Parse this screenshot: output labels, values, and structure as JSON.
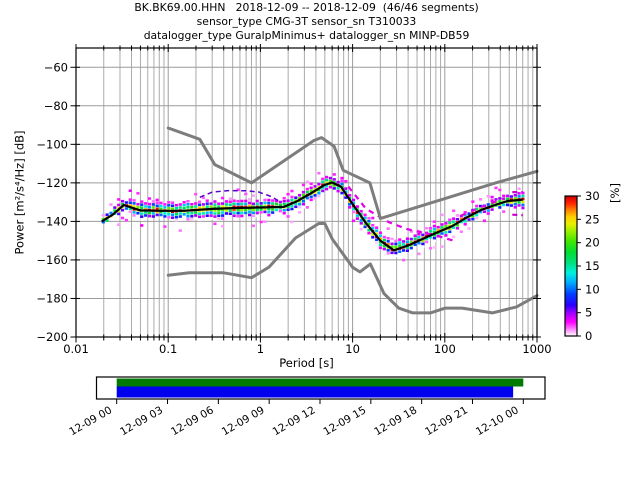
{
  "chart_data": {
    "type": "heatmap",
    "title": "BK.BK69.00.HHN   2018-12-09 -- 2018-12-09  (46/46 segments)",
    "subtitle_sensor": "sensor_type CMG-3T sensor_sn T310033",
    "subtitle_datalogger": "datalogger_type GuralpMinimus+ datalogger_sn MINP-DB59",
    "xlabel": "Period [s]",
    "ylabel": "Power [m²/s⁴/Hz] [dB]",
    "xscale": "log",
    "xlim": [
      0.01,
      1000
    ],
    "ylim": [
      -200,
      -50
    ],
    "grid": true,
    "x_ticks": [
      {
        "v": 0.01,
        "label": "0.01"
      },
      {
        "v": 0.1,
        "label": "0.1"
      },
      {
        "v": 1,
        "label": "1"
      },
      {
        "v": 10,
        "label": "10"
      },
      {
        "v": 100,
        "label": "100"
      },
      {
        "v": 1000,
        "label": "1000"
      }
    ],
    "y_ticks": [
      {
        "v": -60,
        "label": "−60"
      },
      {
        "v": -80,
        "label": "−80"
      },
      {
        "v": -100,
        "label": "−100"
      },
      {
        "v": -120,
        "label": "−120"
      },
      {
        "v": -140,
        "label": "−140"
      },
      {
        "v": -160,
        "label": "−160"
      },
      {
        "v": -180,
        "label": "−180"
      },
      {
        "v": -200,
        "label": "−200"
      }
    ],
    "colorbar": {
      "label": "[%]",
      "ticks": [
        0,
        5,
        10,
        15,
        20,
        25,
        30
      ],
      "range": [
        0,
        30
      ],
      "stops": [
        [
          0,
          "#ffffff"
        ],
        [
          0.9,
          "#ffb0ff"
        ],
        [
          3,
          "#ff00ff"
        ],
        [
          5,
          "#9900ff"
        ],
        [
          6.6,
          "#2a00ff"
        ],
        [
          9,
          "#0040ff"
        ],
        [
          11.4,
          "#00aaff"
        ],
        [
          13.5,
          "#00f0e0"
        ],
        [
          15.6,
          "#00e080"
        ],
        [
          18,
          "#00dd30"
        ],
        [
          20.4,
          "#44e800"
        ],
        [
          22.5,
          "#a0f000"
        ],
        [
          24,
          "#e8f000"
        ],
        [
          25.5,
          "#ffd000"
        ],
        [
          27,
          "#ff8000"
        ],
        [
          28.5,
          "#ff2000"
        ],
        [
          30,
          "#cc0000"
        ]
      ]
    },
    "noise_models": {
      "color": "#7d7d7d",
      "nhnm": [
        [
          0.1,
          -91.5
        ],
        [
          0.22,
          -97.4
        ],
        [
          0.32,
          -110.5
        ],
        [
          0.8,
          -120.0
        ],
        [
          3.8,
          -98.0
        ],
        [
          4.6,
          -96.5
        ],
        [
          6.3,
          -101.0
        ],
        [
          7.9,
          -113.5
        ],
        [
          15.4,
          -120.0
        ],
        [
          20.0,
          -138.5
        ],
        [
          354.8,
          -120.0
        ],
        [
          1000,
          -114.0
        ]
      ],
      "nlnm": [
        [
          0.1,
          -168.0
        ],
        [
          0.17,
          -166.7
        ],
        [
          0.4,
          -166.7
        ],
        [
          0.8,
          -169.2
        ],
        [
          1.24,
          -163.7
        ],
        [
          2.4,
          -148.6
        ],
        [
          4.3,
          -141.1
        ],
        [
          5.0,
          -141.1
        ],
        [
          6.0,
          -149.0
        ],
        [
          10.0,
          -163.8
        ],
        [
          12.0,
          -166.2
        ],
        [
          15.6,
          -162.1
        ],
        [
          21.9,
          -177.5
        ],
        [
          31.6,
          -185.0
        ],
        [
          45.0,
          -187.5
        ],
        [
          70.0,
          -187.5
        ],
        [
          101.0,
          -185.0
        ],
        [
          154.0,
          -185.0
        ],
        [
          328.0,
          -187.5
        ],
        [
          600.0,
          -184.4
        ],
        [
          1000,
          -178.5
        ]
      ]
    },
    "ppsd": {
      "mode_color": "#000000",
      "periods": [
        0.019,
        0.025,
        0.033,
        0.05,
        0.08,
        0.15,
        0.3,
        0.6,
        1.0,
        1.8,
        2.5,
        3.5,
        5.0,
        6.0,
        7.5,
        10,
        14,
        20,
        28,
        40,
        55,
        80,
        120,
        180,
        250,
        350,
        480,
        700
      ],
      "mode_db": [
        -140,
        -136.5,
        -131.5,
        -134.3,
        -134.5,
        -134.5,
        -133.5,
        -133,
        -132.8,
        -132.5,
        -129.5,
        -125.5,
        -121,
        -119.8,
        -122,
        -131,
        -141,
        -150,
        -155,
        -152.5,
        -149.5,
        -146,
        -142.5,
        -137.5,
        -134,
        -131.5,
        -129.4,
        -128.7
      ],
      "band_top_db": [
        -138,
        -133.5,
        -128.5,
        -130,
        -130,
        -130,
        -129.5,
        -129.5,
        -129,
        -129,
        -126.5,
        -122.5,
        -117.5,
        -116.5,
        -118.5,
        -127,
        -136.5,
        -145.5,
        -150.5,
        -148.5,
        -146,
        -142.5,
        -139,
        -134.5,
        -131,
        -128.5,
        -126.5,
        -125.5
      ],
      "band_bottom_db": [
        -142,
        -139.5,
        -135,
        -138,
        -138.5,
        -139,
        -138.5,
        -138,
        -137,
        -136,
        -133.5,
        -129,
        -124.5,
        -123.5,
        -125.5,
        -135,
        -145.5,
        -154,
        -158.5,
        -156.5,
        -153,
        -149.5,
        -146,
        -141,
        -137.5,
        -134.5,
        -132.5,
        -133.5
      ]
    },
    "outlier_lines": [
      {
        "color": "#5a00d0",
        "width": 1.5,
        "dash": "5 3.5",
        "points": [
          [
            0.22,
            -127.5
          ],
          [
            0.3,
            -124.8
          ],
          [
            0.45,
            -124
          ],
          [
            0.7,
            -124.1
          ],
          [
            0.95,
            -124.7
          ],
          [
            1.3,
            -127
          ],
          [
            1.6,
            -129.5
          ]
        ]
      },
      {
        "color": "#e600e6",
        "width": 2.2,
        "dash": "5.5 5",
        "points": [
          [
            9,
            -122
          ],
          [
            14,
            -133.5
          ],
          [
            25,
            -140.5
          ],
          [
            39,
            -144
          ],
          [
            60,
            -146
          ],
          [
            90,
            -148
          ],
          [
            125,
            -150
          ]
        ]
      },
      {
        "color": "#e600e6",
        "width": 2.2,
        "dash": "5 6",
        "points": [
          [
            150,
            -137
          ],
          [
            220,
            -133.5
          ],
          [
            320,
            -130.5
          ],
          [
            450,
            -128
          ]
        ]
      },
      {
        "color": "#cc00cc",
        "width": 2.2,
        "dash": "5 4",
        "points": [
          [
            540,
            -124.8
          ],
          [
            700,
            -124.8
          ]
        ]
      },
      {
        "color": "#cc00cc",
        "width": 2.2,
        "dash": "5 4",
        "points": [
          [
            540,
            -136.5
          ],
          [
            700,
            -136.8
          ]
        ]
      }
    ],
    "coverage": {
      "labels": [
        "12-09 00",
        "12-09 03",
        "12-09 06",
        "12-09 09",
        "12-09 12",
        "12-09 15",
        "12-09 18",
        "12-09 21",
        "12-10 00"
      ],
      "green_color": "#007a00",
      "blue_color": "#0000ee",
      "green_span": [
        0,
        1.0
      ],
      "blue_span": [
        0,
        0.975
      ]
    }
  }
}
